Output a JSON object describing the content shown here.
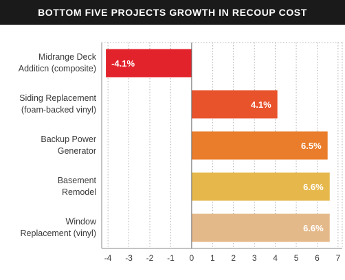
{
  "header": {
    "title": "BOTTOM FIVE PROJECTS GROWTH IN RECOUP COST"
  },
  "chart_data": {
    "type": "bar",
    "orientation": "horizontal",
    "title": "BOTTOM FIVE PROJECTS GROWTH IN RECOUP COST",
    "categories": [
      [
        "Midrange Deck",
        "Additicn (composite)"
      ],
      [
        "Siding Replacement",
        "(foam-backed vinyl)"
      ],
      [
        "Backup Power",
        "Generator"
      ],
      [
        "Basement",
        "Remodel"
      ],
      [
        "Window",
        "Replacement (vinyl)"
      ]
    ],
    "values": [
      -4.1,
      4.1,
      6.5,
      6.6,
      6.6
    ],
    "data_labels": [
      "-4.1%",
      "4.1%",
      "6.5%",
      "6.6%",
      "6.6%"
    ],
    "bar_colors": [
      "#e3232b",
      "#e8532c",
      "#ea7d2b",
      "#e6b84c",
      "#e4b98a"
    ],
    "xlim": [
      -4.3,
      7.2
    ],
    "xticks": [
      -4,
      -3,
      -2,
      -1,
      0,
      1,
      2,
      3,
      4,
      5,
      6,
      7
    ],
    "xtick_labels": [
      "-4",
      "-3",
      "-2",
      "-1",
      "0",
      "1",
      "2",
      "3",
      "4",
      "5",
      "6",
      "7"
    ],
    "grid": true,
    "xlabel": "",
    "ylabel": ""
  }
}
